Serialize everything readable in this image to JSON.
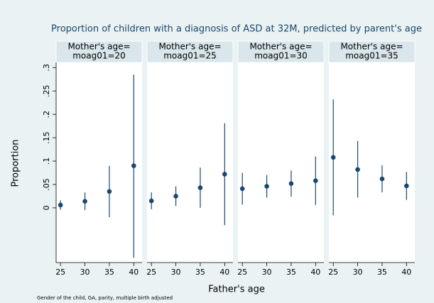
{
  "chart_data": {
    "type": "errorbar",
    "title": "Proportion of children with a diagnosis of ASD at 32M, predicted by parent's age",
    "x_label": "Father's age",
    "y_label": "Proportion",
    "note": "Gender of the child, GA, parity, multiple birth adjusted",
    "color": "#1a476f",
    "ylim": [
      -0.117,
      0.311
    ],
    "yticks": [
      0,
      {
        "value": 0.05,
        "label": ".05"
      },
      {
        "value": 0.1,
        "label": ".1"
      },
      {
        "value": 0.15,
        "label": ".15"
      },
      {
        "value": 0.2,
        "label": ".2"
      },
      {
        "value": 0.25,
        "label": ".25"
      },
      {
        "value": 0.3,
        "label": ".3"
      }
    ],
    "xlim": [
      24.1,
      41.7
    ],
    "xticks": [
      25,
      30,
      35,
      40
    ],
    "panels": [
      {
        "title_lines": [
          "Mother's age=",
          "moag01=20"
        ],
        "x": [
          25,
          30,
          35,
          40
        ],
        "values": [
          0.006,
          0.014,
          0.035,
          0.09
        ],
        "ci_low": [
          -0.004,
          -0.005,
          -0.02,
          -0.107
        ],
        "ci_high": [
          0.016,
          0.033,
          0.09,
          0.285
        ]
      },
      {
        "title_lines": [
          "Mother's age=",
          "moag01=25"
        ],
        "x": [
          25,
          30,
          35,
          40
        ],
        "values": [
          0.015,
          0.025,
          0.043,
          0.072
        ],
        "ci_low": [
          -0.003,
          0.004,
          0.0,
          -0.037
        ],
        "ci_high": [
          0.033,
          0.046,
          0.086,
          0.181
        ]
      },
      {
        "title_lines": [
          "Mother's age=",
          "moag01=30"
        ],
        "x": [
          25,
          30,
          35,
          40
        ],
        "values": [
          0.041,
          0.046,
          0.052,
          0.058
        ],
        "ci_low": [
          0.007,
          0.022,
          0.024,
          0.006
        ],
        "ci_high": [
          0.075,
          0.07,
          0.08,
          0.11
        ]
      },
      {
        "title_lines": [
          "Mother's age=",
          "moag01=35"
        ],
        "x": [
          25,
          30,
          35,
          40
        ],
        "values": [
          0.108,
          0.082,
          0.062,
          0.047
        ],
        "ci_low": [
          -0.016,
          0.022,
          0.033,
          0.017
        ],
        "ci_high": [
          0.232,
          0.143,
          0.091,
          0.077
        ]
      }
    ]
  }
}
